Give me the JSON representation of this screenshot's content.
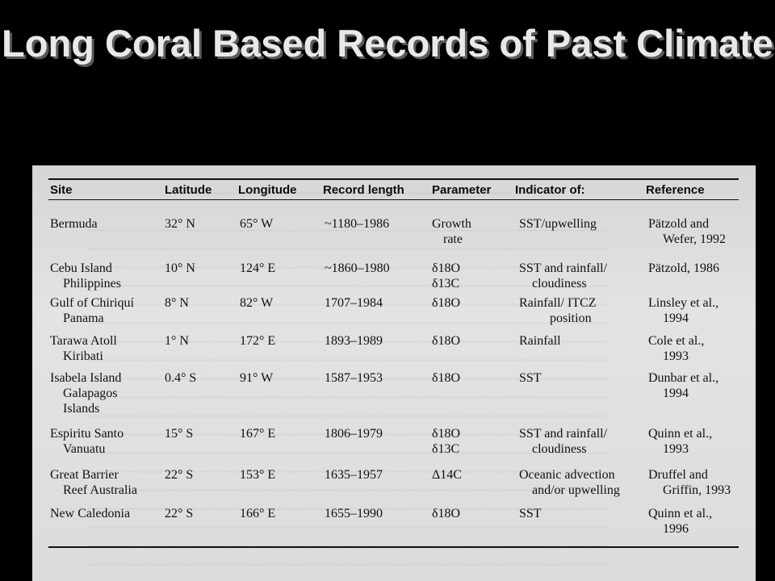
{
  "title": "Long Coral Based Records of Past Climate",
  "table": {
    "headers": [
      "Site",
      "Latitude",
      "Longitude",
      "Record length",
      "Parameter",
      "Indicator of:",
      "Reference"
    ],
    "rows": [
      {
        "site": [
          "Bermuda"
        ],
        "lat": "32° N",
        "lon": "65° W",
        "length": "~1180–1986",
        "param": [
          "Growth",
          "rate"
        ],
        "indicator": [
          "SST/upwelling"
        ],
        "reference": [
          "Pätzold and",
          "Wefer, 1992"
        ]
      },
      {
        "site": [
          "Cebu Island",
          "Philippines"
        ],
        "lat": "10° N",
        "lon": "124° E",
        "length": "~1860–1980",
        "param": [
          "δ18O",
          "δ13C"
        ],
        "indicator": [
          "SST and rainfall/",
          "cloudiness"
        ],
        "reference": [
          "Pätzold, 1986"
        ]
      },
      {
        "site": [
          "Gulf of Chiriquí",
          "Panama"
        ],
        "lat": "8° N",
        "lon": "82° W",
        "length": "1707–1984",
        "param": [
          "δ18O"
        ],
        "indicator": [
          "Rainfall/ ITCZ",
          "position"
        ],
        "reference": [
          "Linsley et al.,",
          "1994"
        ]
      },
      {
        "site": [
          "Tarawa Atoll",
          "Kiribati"
        ],
        "lat": "1° N",
        "lon": "172° E",
        "length": "1893–1989",
        "param": [
          "δ18O"
        ],
        "indicator": [
          "Rainfall"
        ],
        "reference": [
          "Cole et al.,",
          "1993"
        ]
      },
      {
        "site": [
          "Isabela Island",
          "Galapagos",
          "Islands"
        ],
        "lat": "0.4° S",
        "lon": "91° W",
        "length": "1587–1953",
        "param": [
          "δ18O"
        ],
        "indicator": [
          "SST"
        ],
        "reference": [
          "Dunbar et al.,",
          "1994"
        ]
      },
      {
        "site": [
          "Espiritu Santo",
          "Vanuatu"
        ],
        "lat": "15° S",
        "lon": "167° E",
        "length": "1806–1979",
        "param": [
          "δ18O",
          "δ13C"
        ],
        "indicator": [
          "SST and rainfall/",
          "cloudiness"
        ],
        "reference": [
          "Quinn et al.,",
          "1993"
        ]
      },
      {
        "site": [
          "Great Barrier",
          "Reef Australia"
        ],
        "lat": "22° S",
        "lon": "153° E",
        "length": "1635–1957",
        "param": [
          "Δ14C"
        ],
        "indicator": [
          "Oceanic advection",
          "and/or upwelling"
        ],
        "reference": [
          "Druffel and",
          "Griffin, 1993"
        ]
      },
      {
        "site": [
          "New Caledonia"
        ],
        "lat": "22° S",
        "lon": "166° E",
        "length": "1655–1990",
        "param": [
          "δ18O"
        ],
        "indicator": [
          "SST"
        ],
        "reference": [
          "Quinn et al.,",
          "1996"
        ]
      }
    ]
  }
}
